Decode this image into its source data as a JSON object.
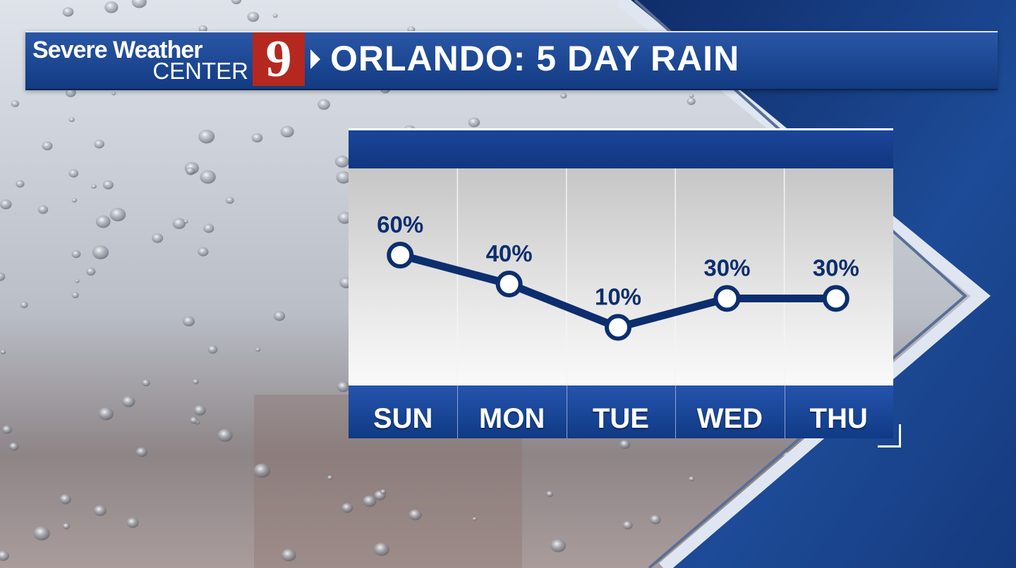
{
  "header": {
    "brand_line1": "Severe Weather",
    "brand_line2": "CENTER",
    "channel_number": "9",
    "title": "ORLANDO: 5 DAY RAIN"
  },
  "colors": {
    "brand_blue": "#1b4598",
    "line_navy": "#0c2e6e",
    "channel_red": "#b5281f"
  },
  "chart_data": {
    "type": "line",
    "categories": [
      "SUN",
      "MON",
      "TUE",
      "WED",
      "THU"
    ],
    "values": [
      60,
      40,
      10,
      30,
      30
    ],
    "labels": [
      "60%",
      "40%",
      "10%",
      "30%",
      "30%"
    ],
    "unit": "%",
    "title": "",
    "xlabel": "",
    "ylabel": "",
    "grid": "vertical"
  }
}
